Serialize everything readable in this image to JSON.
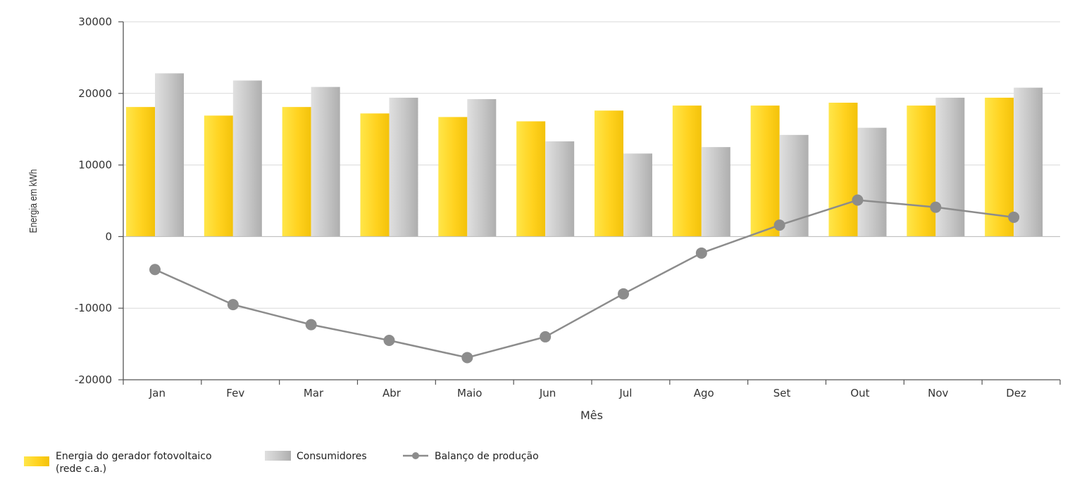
{
  "chart_data": {
    "type": "bar",
    "title": "",
    "xlabel": "Mês",
    "ylabel": "Energia em kWh",
    "ylim": [
      -20000,
      30000
    ],
    "yticks": [
      -20000,
      -10000,
      0,
      10000,
      20000,
      30000
    ],
    "grid": true,
    "legend_position": "bottom-left",
    "categories": [
      "Jan",
      "Fev",
      "Mar",
      "Abr",
      "Maio",
      "Jun",
      "Jul",
      "Ago",
      "Set",
      "Out",
      "Nov",
      "Dez"
    ],
    "series": [
      {
        "name": "Energia do gerador fotovoltaico (rede c.a.)",
        "name_lines": [
          "Energia do gerador fotovoltaico",
          "(rede c.a.)"
        ],
        "type": "bar",
        "color": "#ffd21f",
        "values": [
          18100,
          16900,
          18100,
          17200,
          16700,
          16100,
          17600,
          18300,
          18300,
          18700,
          18300,
          19400
        ]
      },
      {
        "name": "Consumidores",
        "name_lines": [
          "Consumidores"
        ],
        "type": "bar",
        "color": "#c4c4c4",
        "values": [
          22800,
          21800,
          20900,
          19400,
          19200,
          13300,
          11600,
          12500,
          14200,
          15200,
          19400,
          20800
        ]
      },
      {
        "name": "Balanço de produção",
        "name_lines": [
          "Balanço de produção"
        ],
        "type": "line",
        "color": "#8c8c8c",
        "values": [
          -4600,
          -9500,
          -12300,
          -14500,
          -16900,
          -14000,
          -8000,
          -2300,
          1600,
          5100,
          4100,
          2700
        ]
      }
    ]
  }
}
